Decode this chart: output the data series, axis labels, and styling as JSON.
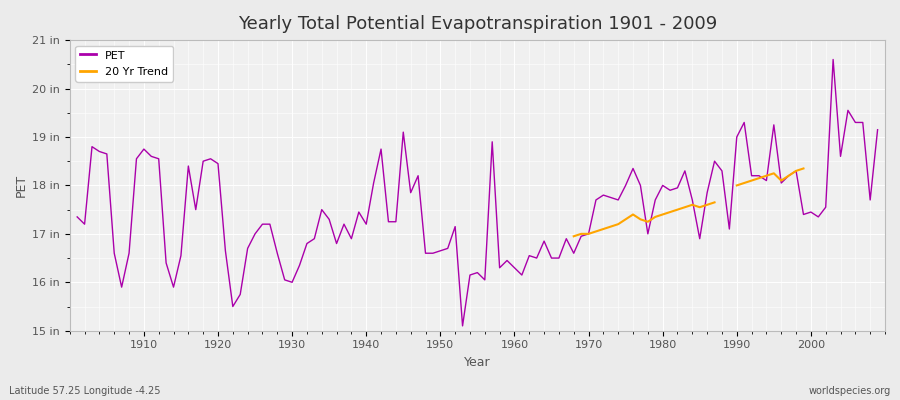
{
  "title": "Yearly Total Potential Evapotranspiration 1901 - 2009",
  "xlabel": "Year",
  "ylabel": "PET",
  "lat_lon_label": "Latitude 57.25 Longitude -4.25",
  "source_label": "worldspecies.org",
  "ylim": [
    15,
    21
  ],
  "yticks": [
    15,
    16,
    17,
    18,
    19,
    20,
    21
  ],
  "ytick_labels": [
    "15 in",
    "16 in",
    "17 in",
    "18 in",
    "19 in",
    "20 in",
    "21 in"
  ],
  "xlim": [
    1900,
    2010
  ],
  "pet_color": "#AA00AA",
  "trend_color": "#FFA500",
  "bg_color": "#EBEBEB",
  "plot_bg_color": "#F0F0F0",
  "grid_color": "#FFFFFF",
  "years": [
    1901,
    1902,
    1903,
    1904,
    1905,
    1906,
    1907,
    1908,
    1909,
    1910,
    1911,
    1912,
    1913,
    1914,
    1915,
    1916,
    1917,
    1918,
    1919,
    1920,
    1921,
    1922,
    1923,
    1924,
    1925,
    1926,
    1927,
    1928,
    1929,
    1930,
    1931,
    1932,
    1933,
    1934,
    1935,
    1936,
    1937,
    1938,
    1939,
    1940,
    1941,
    1942,
    1943,
    1944,
    1945,
    1946,
    1947,
    1948,
    1949,
    1950,
    1951,
    1952,
    1953,
    1954,
    1955,
    1956,
    1957,
    1958,
    1959,
    1960,
    1961,
    1962,
    1963,
    1964,
    1965,
    1966,
    1967,
    1968,
    1969,
    1970,
    1971,
    1972,
    1973,
    1974,
    1975,
    1976,
    1977,
    1978,
    1979,
    1980,
    1981,
    1982,
    1983,
    1984,
    1985,
    1986,
    1987,
    1988,
    1989,
    1990,
    1991,
    1992,
    1993,
    1994,
    1995,
    1996,
    1997,
    1998,
    1999,
    2000,
    2001,
    2002,
    2003,
    2004,
    2005,
    2006,
    2007,
    2008,
    2009
  ],
  "pet_values": [
    17.35,
    17.2,
    18.8,
    18.7,
    18.65,
    16.6,
    15.9,
    16.6,
    18.55,
    18.75,
    18.6,
    18.55,
    16.4,
    15.9,
    16.55,
    18.4,
    17.5,
    18.5,
    18.55,
    18.45,
    16.65,
    15.5,
    15.75,
    16.7,
    17.0,
    17.2,
    17.2,
    16.6,
    16.05,
    16.0,
    16.35,
    16.8,
    16.9,
    17.5,
    17.3,
    16.8,
    17.2,
    16.9,
    17.45,
    17.2,
    18.05,
    18.75,
    17.25,
    17.25,
    19.1,
    17.85,
    18.2,
    16.6,
    16.6,
    16.65,
    16.7,
    17.15,
    15.1,
    16.15,
    16.2,
    16.05,
    18.9,
    16.3,
    16.45,
    16.3,
    16.15,
    16.55,
    16.5,
    16.85,
    16.5,
    16.5,
    16.9,
    16.6,
    16.95,
    17.0,
    17.7,
    17.8,
    17.75,
    17.7,
    18.0,
    18.35,
    18.0,
    17.0,
    17.7,
    18.0,
    17.9,
    17.95,
    18.3,
    17.7,
    16.9,
    17.85,
    18.5,
    18.3,
    17.1,
    19.0,
    19.3,
    18.2,
    18.2,
    18.1,
    19.25,
    18.05,
    18.2,
    18.3,
    17.4,
    17.45,
    17.35,
    17.55,
    20.6,
    18.6,
    19.55,
    19.3,
    19.3,
    17.7,
    19.15
  ],
  "trend_years": [
    1968,
    1969,
    1970,
    1971,
    1972,
    1973,
    1974,
    1975,
    1976,
    1977,
    1978,
    1979,
    1980,
    1981,
    1982,
    1983,
    1984,
    1985,
    1986,
    1987,
    1990,
    1991,
    1992,
    1993,
    1994,
    1995,
    1996,
    1997,
    1998,
    1999
  ],
  "trend_values": [
    16.95,
    17.0,
    17.0,
    17.05,
    17.1,
    17.15,
    17.2,
    17.3,
    17.4,
    17.3,
    17.25,
    17.35,
    17.4,
    17.45,
    17.5,
    17.55,
    17.6,
    17.55,
    17.6,
    17.65,
    18.0,
    18.05,
    18.1,
    18.15,
    18.2,
    18.25,
    18.1,
    18.2,
    18.3,
    18.35
  ]
}
